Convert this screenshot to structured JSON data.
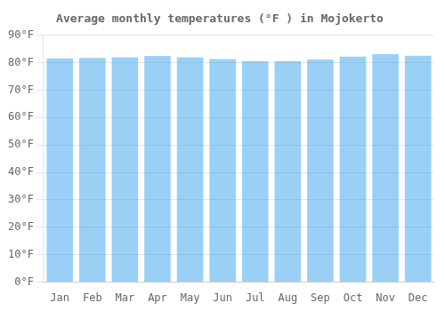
{
  "chart_data": {
    "type": "bar",
    "title": "Average monthly temperatures (°F ) in Mojokerto",
    "categories": [
      "Jan",
      "Feb",
      "Mar",
      "Apr",
      "May",
      "Jun",
      "Jul",
      "Aug",
      "Sep",
      "Oct",
      "Nov",
      "Dec"
    ],
    "values": [
      81.5,
      81.7,
      81.9,
      82.4,
      81.9,
      81.3,
      80.6,
      80.6,
      81.1,
      82.2,
      83.1,
      82.5
    ],
    "ylim": [
      0,
      90
    ],
    "yticks": [
      {
        "value": 0,
        "label": "0°F"
      },
      {
        "value": 10,
        "label": "10°F"
      },
      {
        "value": 20,
        "label": "20°F"
      },
      {
        "value": 30,
        "label": "30°F"
      },
      {
        "value": 40,
        "label": "40°F"
      },
      {
        "value": 50,
        "label": "50°F"
      },
      {
        "value": 60,
        "label": "60°F"
      },
      {
        "value": 70,
        "label": "70°F"
      },
      {
        "value": 80,
        "label": "80°F"
      },
      {
        "value": 90,
        "label": "90°F"
      }
    ],
    "grid": true
  }
}
